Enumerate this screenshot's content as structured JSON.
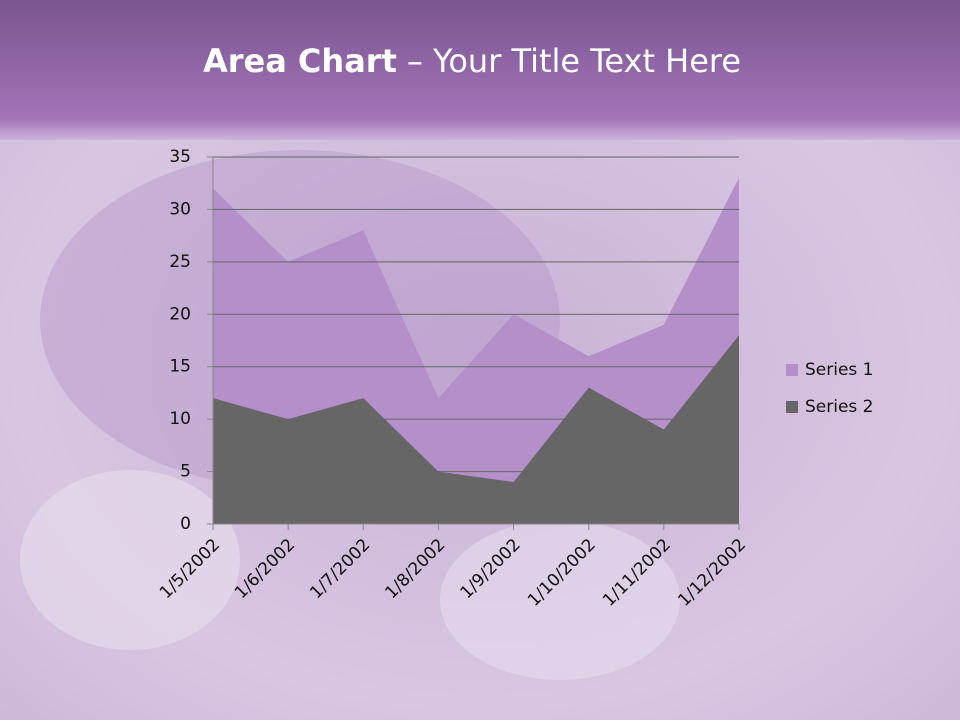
{
  "chart_data": {
    "type": "area",
    "title": [
      "Area Chart",
      "– Your Title Text Here"
    ],
    "categories": [
      "1/5/2002",
      "1/6/2002",
      "1/7/2002",
      "1/8/2002",
      "1/9/2002",
      "1/10/2002",
      "1/11/2002",
      "1/12/2002"
    ],
    "series": [
      {
        "name": "Series 1",
        "color": "#b48fca",
        "values": [
          32,
          25,
          28,
          12,
          20,
          16,
          19,
          33
        ]
      },
      {
        "name": "Series 2",
        "color": "#666666",
        "values": [
          12,
          10,
          12,
          5,
          4,
          13,
          9,
          18
        ]
      }
    ],
    "ylim": [
      0,
      35
    ],
    "yticks": [
      0,
      5,
      10,
      15,
      20,
      25,
      30,
      35
    ],
    "grid": true,
    "legend": "right"
  }
}
